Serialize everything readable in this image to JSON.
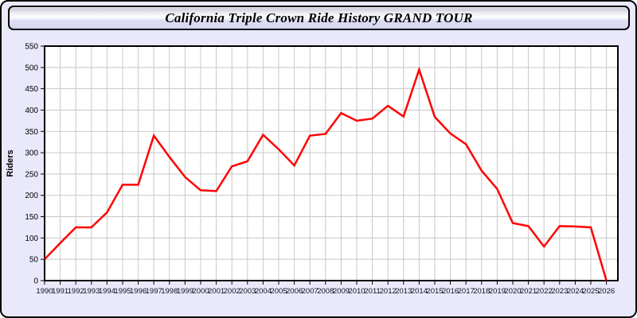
{
  "window": {
    "title": "California Triple Crown Ride History GRAND TOUR"
  },
  "colors": {
    "background": "#e9e9fb",
    "plot_background": "#ffffff",
    "grid": "#c8c8c8",
    "axis": "#000000",
    "line": "#ff0000",
    "tick_label": "#111122",
    "frame_border": "#000000"
  },
  "chart_data": {
    "type": "line",
    "title": "California Triple Crown Ride History GRAND TOUR",
    "xlabel": "",
    "ylabel": "Riders",
    "legend_position": "none",
    "grid": true,
    "ylim": [
      0,
      550
    ],
    "ytick_step": 50,
    "x": [
      1990,
      1991,
      1992,
      1993,
      1994,
      1995,
      1996,
      1997,
      1998,
      1999,
      2000,
      2001,
      2002,
      2003,
      2004,
      2005,
      2006,
      2007,
      2008,
      2009,
      2010,
      2011,
      2012,
      2013,
      2014,
      2015,
      2016,
      2017,
      2018,
      2019,
      2020,
      2021,
      2022,
      2023,
      2024,
      2025,
      2026
    ],
    "series": [
      {
        "name": "Riders",
        "color": "#ff0000",
        "values": [
          50,
          88,
          125,
          125,
          160,
          225,
          225,
          340,
          290,
          243,
          212,
          210,
          268,
          280,
          342,
          308,
          270,
          340,
          344,
          393,
          375,
          380,
          410,
          385,
          495,
          384,
          345,
          320,
          258,
          215,
          135,
          128,
          80,
          128,
          127,
          125,
          0
        ]
      }
    ]
  }
}
